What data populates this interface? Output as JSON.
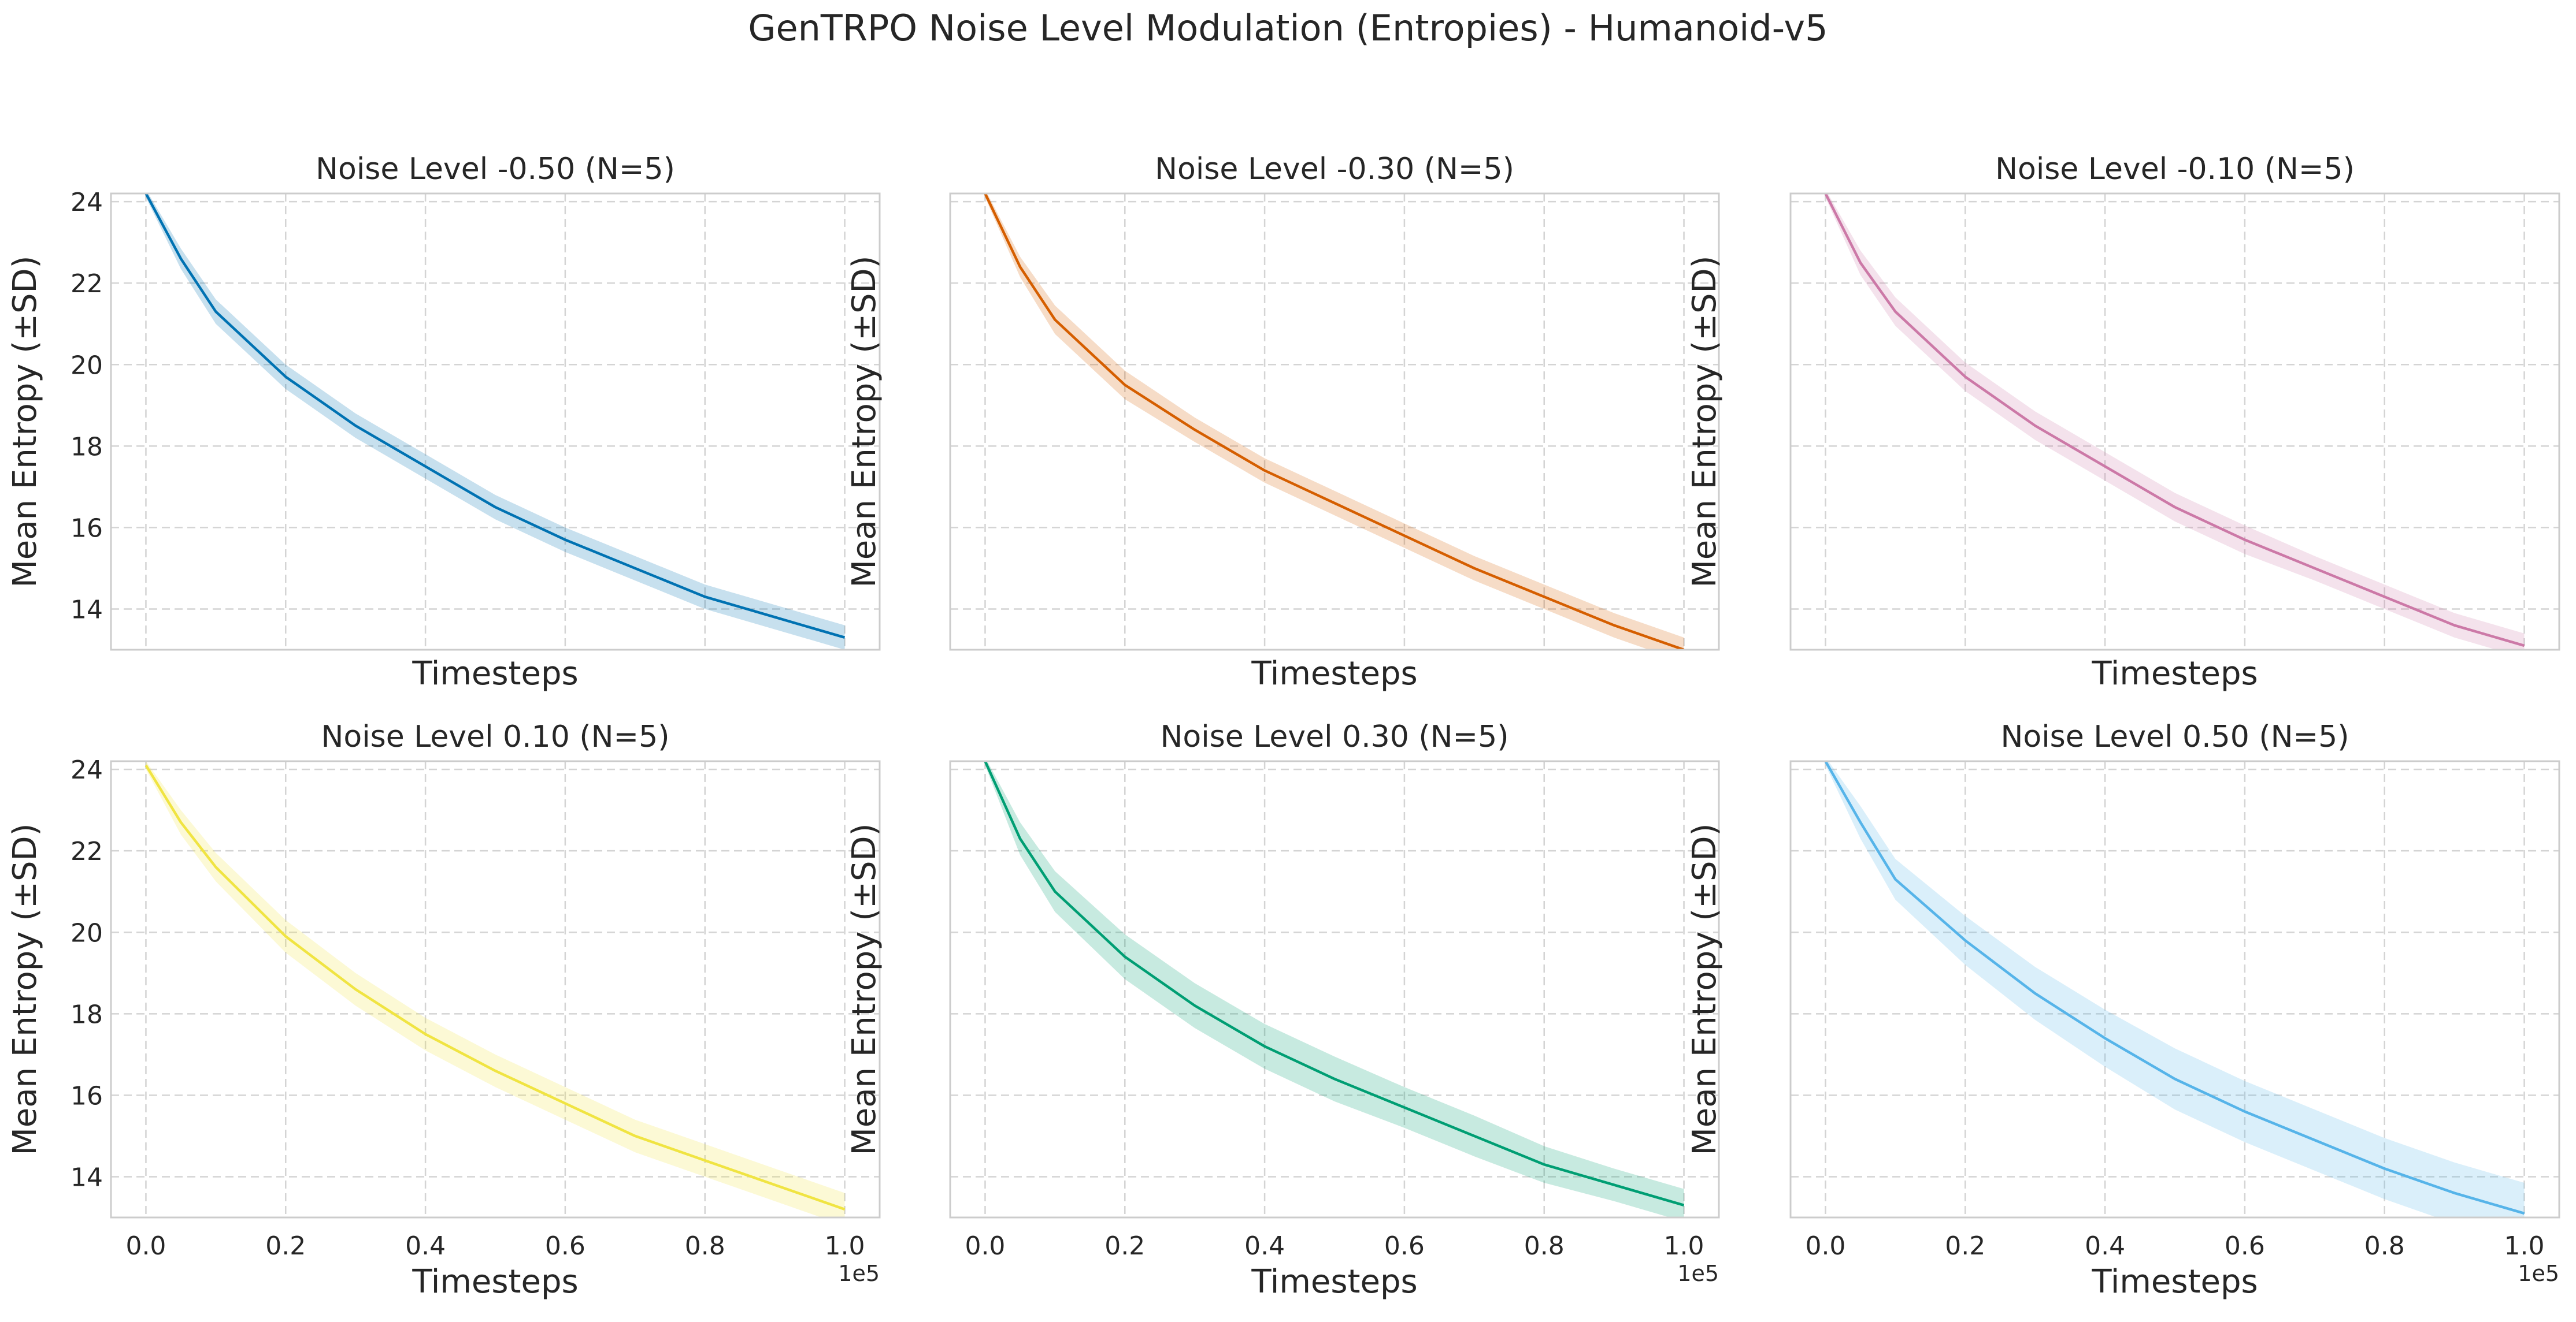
{
  "figure": {
    "title": "GenTRPO Noise Level Modulation (Entropies) - Humanoid-v5"
  },
  "axes_common": {
    "xlabel": "Timesteps",
    "ylabel": "Mean Entropy (±SD)",
    "x_ticks": [
      "0.0",
      "0.2",
      "0.4",
      "0.6",
      "0.8",
      "1.0"
    ],
    "y_ticks": [
      "14",
      "16",
      "18",
      "20",
      "22",
      "24"
    ],
    "x_offset_text": "1e5"
  },
  "chart_data": [
    {
      "type": "line",
      "title": "Noise Level -0.50 (N=5)",
      "xlabel": "Timesteps",
      "ylabel": "Mean Entropy (±SD)",
      "xlim": [
        -5000,
        105000
      ],
      "ylim": [
        13,
        24.2
      ],
      "grid": true,
      "series": [
        {
          "color": "#0072B2",
          "x": [
            0,
            5000,
            10000,
            20000,
            30000,
            40000,
            50000,
            60000,
            70000,
            80000,
            90000,
            100000
          ],
          "y": [
            24.2,
            22.6,
            21.3,
            19.7,
            18.5,
            17.5,
            16.5,
            15.7,
            15.0,
            14.3,
            13.8,
            13.3
          ],
          "sd": [
            0.1,
            0.25,
            0.3,
            0.3,
            0.3,
            0.3,
            0.3,
            0.3,
            0.3,
            0.3,
            0.3,
            0.3
          ]
        }
      ]
    },
    {
      "type": "line",
      "title": "Noise Level -0.30 (N=5)",
      "xlabel": "Timesteps",
      "ylabel": "Mean Entropy (±SD)",
      "xlim": [
        -5000,
        105000
      ],
      "ylim": [
        13,
        24.2
      ],
      "grid": true,
      "series": [
        {
          "color": "#D55E00",
          "x": [
            0,
            5000,
            10000,
            20000,
            30000,
            40000,
            50000,
            60000,
            70000,
            80000,
            90000,
            100000
          ],
          "y": [
            24.2,
            22.4,
            21.1,
            19.5,
            18.4,
            17.4,
            16.6,
            15.8,
            15.0,
            14.3,
            13.6,
            13.0
          ],
          "sd": [
            0.1,
            0.25,
            0.35,
            0.35,
            0.3,
            0.3,
            0.3,
            0.3,
            0.3,
            0.3,
            0.3,
            0.3
          ]
        }
      ]
    },
    {
      "type": "line",
      "title": "Noise Level -0.10 (N=5)",
      "xlabel": "Timesteps",
      "ylabel": "Mean Entropy (±SD)",
      "xlim": [
        -5000,
        105000
      ],
      "ylim": [
        13,
        24.2
      ],
      "grid": true,
      "series": [
        {
          "color": "#CC79A7",
          "x": [
            0,
            5000,
            10000,
            20000,
            30000,
            40000,
            50000,
            60000,
            70000,
            80000,
            90000,
            100000
          ],
          "y": [
            24.2,
            22.5,
            21.3,
            19.7,
            18.5,
            17.5,
            16.5,
            15.7,
            15.0,
            14.3,
            13.6,
            13.1
          ],
          "sd": [
            0.1,
            0.3,
            0.35,
            0.35,
            0.35,
            0.35,
            0.35,
            0.35,
            0.3,
            0.3,
            0.3,
            0.3
          ]
        }
      ]
    },
    {
      "type": "line",
      "title": "Noise Level 0.10 (N=5)",
      "xlabel": "Timesteps",
      "ylabel": "Mean Entropy (±SD)",
      "xlim": [
        -5000,
        105000
      ],
      "ylim": [
        13,
        24.2
      ],
      "grid": true,
      "series": [
        {
          "color": "#F0E442",
          "x": [
            0,
            5000,
            10000,
            20000,
            30000,
            40000,
            50000,
            60000,
            70000,
            80000,
            90000,
            100000
          ],
          "y": [
            24.1,
            22.7,
            21.6,
            19.9,
            18.6,
            17.5,
            16.6,
            15.8,
            15.0,
            14.4,
            13.8,
            13.2
          ],
          "sd": [
            0.1,
            0.3,
            0.35,
            0.4,
            0.4,
            0.4,
            0.4,
            0.4,
            0.4,
            0.4,
            0.4,
            0.4
          ]
        }
      ]
    },
    {
      "type": "line",
      "title": "Noise Level 0.30 (N=5)",
      "xlabel": "Timesteps",
      "ylabel": "Mean Entropy (±SD)",
      "xlim": [
        -5000,
        105000
      ],
      "ylim": [
        13,
        24.2
      ],
      "grid": true,
      "series": [
        {
          "color": "#009E73",
          "x": [
            0,
            5000,
            10000,
            20000,
            30000,
            40000,
            50000,
            60000,
            70000,
            80000,
            90000,
            100000
          ],
          "y": [
            24.2,
            22.3,
            21.0,
            19.4,
            18.2,
            17.2,
            16.4,
            15.7,
            15.0,
            14.3,
            13.8,
            13.3
          ],
          "sd": [
            0.1,
            0.4,
            0.5,
            0.55,
            0.55,
            0.55,
            0.55,
            0.5,
            0.5,
            0.45,
            0.4,
            0.4
          ]
        }
      ]
    },
    {
      "type": "line",
      "title": "Noise Level 0.50 (N=5)",
      "xlabel": "Timesteps",
      "ylabel": "Mean Entropy (±SD)",
      "xlim": [
        -5000,
        105000
      ],
      "ylim": [
        13,
        24.2
      ],
      "grid": true,
      "series": [
        {
          "color": "#56B4E9",
          "x": [
            0,
            5000,
            10000,
            20000,
            30000,
            40000,
            50000,
            60000,
            70000,
            80000,
            90000,
            100000
          ],
          "y": [
            24.2,
            22.7,
            21.3,
            19.8,
            18.5,
            17.4,
            16.4,
            15.6,
            14.9,
            14.2,
            13.6,
            13.1
          ],
          "sd": [
            0.1,
            0.4,
            0.5,
            0.6,
            0.65,
            0.7,
            0.75,
            0.75,
            0.75,
            0.75,
            0.75,
            0.75
          ]
        }
      ]
    }
  ]
}
